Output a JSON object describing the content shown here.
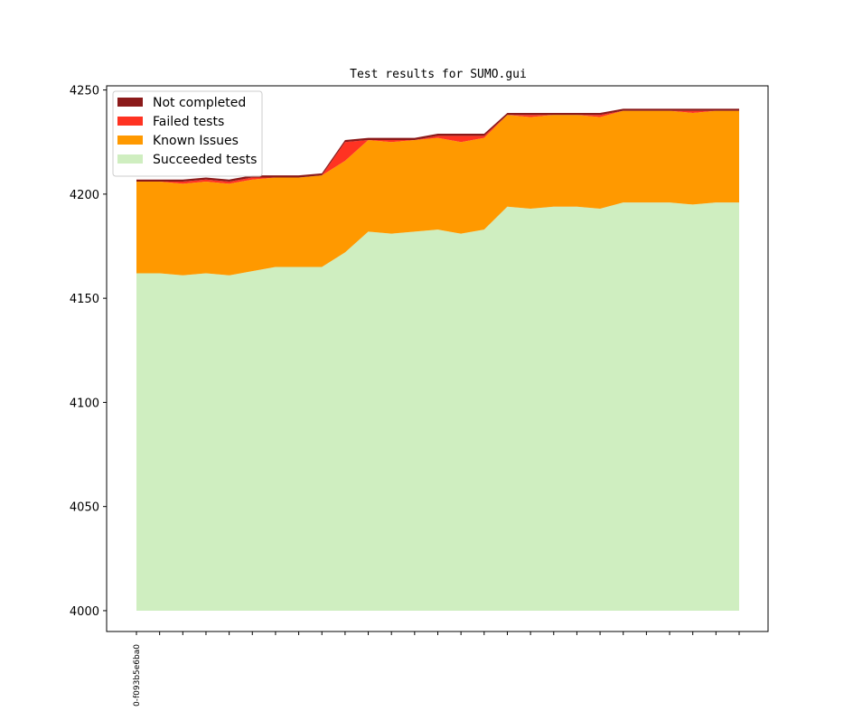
{
  "chart_data": {
    "type": "area",
    "title": "Test results for SUMO.gui",
    "xlabel": "",
    "ylabel": "",
    "ylim": [
      3990,
      4252
    ],
    "y_ticks": [
      4000,
      4050,
      4100,
      4150,
      4200,
      4250
    ],
    "baseline": 4000,
    "x_tick_labels": [
      "0-f093b5e6ba0",
      "",
      "",
      "",
      "",
      "",
      "",
      "",
      "",
      "",
      "",
      "",
      "",
      "",
      "",
      "",
      "",
      "",
      "",
      "",
      "",
      "",
      "",
      "",
      "",
      "",
      ""
    ],
    "legend_position": "top-left",
    "grid": false,
    "series": [
      {
        "name": "Succeeded tests",
        "color": "#cfeec0",
        "values": [
          4162,
          4162,
          4161,
          4162,
          4161,
          4163,
          4165,
          4165,
          4165,
          4172,
          4182,
          4181,
          4182,
          4183,
          4181,
          4183,
          4194,
          4193,
          4194,
          4194,
          4193,
          4196,
          4196,
          4196,
          4195,
          4196,
          4196
        ]
      },
      {
        "name": "Known Issues",
        "color": "#ff9900",
        "values": [
          44,
          44,
          44,
          44,
          44,
          44,
          43,
          43,
          44,
          44,
          44,
          44,
          44,
          44,
          44,
          44,
          44,
          44,
          44,
          44,
          44,
          44,
          44,
          44,
          44,
          44,
          44
        ]
      },
      {
        "name": "Failed tests",
        "color": "#ff3322",
        "values": [
          0,
          0,
          1,
          1,
          1,
          1,
          0,
          0,
          0,
          9,
          0,
          1,
          0,
          1,
          3,
          1,
          0,
          1,
          0,
          0,
          1,
          0,
          0,
          0,
          1,
          0,
          0
        ]
      },
      {
        "name": "Not completed",
        "color": "#8b1a1a",
        "values": [
          1,
          1,
          1,
          1,
          1,
          1,
          1,
          1,
          1,
          1,
          1,
          1,
          1,
          1,
          1,
          1,
          1,
          1,
          1,
          1,
          1,
          1,
          1,
          1,
          1,
          1,
          1
        ]
      }
    ],
    "legend_order": [
      "Not completed",
      "Failed tests",
      "Known Issues",
      "Succeeded tests"
    ]
  }
}
